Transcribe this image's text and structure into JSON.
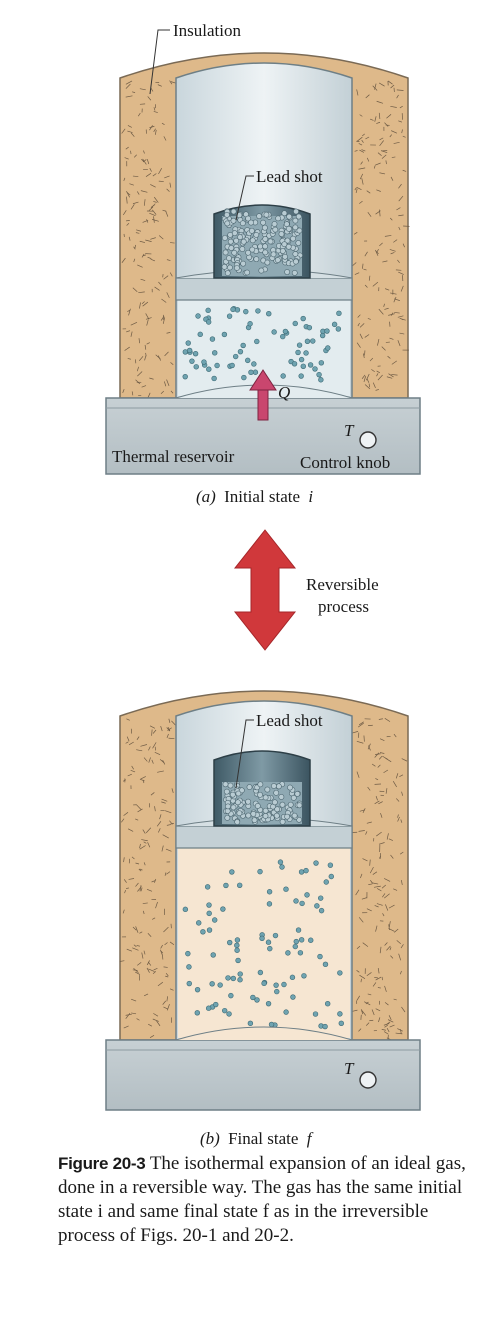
{
  "figure_a": {
    "insulation_label": "Insulation",
    "lead_shot_label": "Lead shot",
    "heat_label": "Q",
    "temperature_label": "T",
    "reservoir_label": "Thermal reservoir",
    "control_knob_label": "Control knob",
    "caption_letter": "(a)",
    "caption_text": "Initial state",
    "caption_symbol": "i"
  },
  "process": {
    "line1": "Reversible",
    "line2": "process"
  },
  "figure_b": {
    "lead_shot_label": "Lead shot",
    "temperature_label": "T",
    "caption_letter": "(b)",
    "caption_text": "Final state",
    "caption_symbol": "f"
  },
  "caption": {
    "number": "Figure 20-3",
    "text": "The isothermal expansion of an ideal gas, done in a reversible way. The gas has the same initial state i and same final state f as in the irreversible process of Figs. 20-1 and 20-2."
  },
  "colors": {
    "insulation": "#deb98a",
    "wall": "#b9c6cc",
    "cylinder_inner": "#d6e2e8",
    "gas_a": "#e3ecef",
    "gas_b": "#f6e6d2",
    "molecule": "#6fa3b0",
    "arrow": "#d0383b",
    "heat_arrow": "#c9466e"
  }
}
